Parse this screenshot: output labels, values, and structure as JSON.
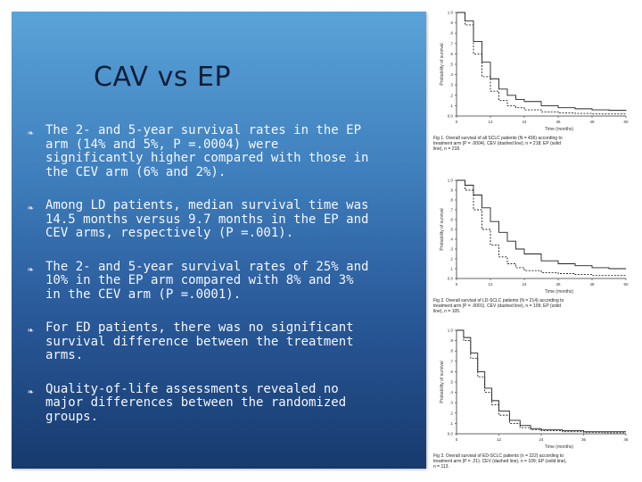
{
  "slide": {
    "title": "CAV vs EP",
    "bullets": [
      "The 2- and 5-year survival rates in the EP arm (14% and 5%, P =.0004) were significantly higher compared with those in the CEV arm (6% and 2%).",
      "Among LD patients, median survival time was 14.5 months versus 9.7 months in the EP and CEV arms, respectively (P =.001).",
      "The 2- and 5-year survival rates of 25% and 10% in the EP arm compared with 8% and 3% in the CEV arm (P =.0001).",
      "For ED patients, there was no significant survival difference between the treatment arms.",
      "Quality-of-life assessments revealed no major differences between the randomized groups."
    ],
    "bullet_icon": "swirl-bullet-icon"
  },
  "chart_data": [
    {
      "type": "line",
      "ylabel": "Probability of survival",
      "xlabel": "Time (months)",
      "x_ticks": [
        "0",
        "12",
        "24",
        "36",
        "48",
        "60"
      ],
      "y_ticks": [
        "0.0",
        ".1",
        ".2",
        ".3",
        ".4",
        ".5",
        ".6",
        ".7",
        ".8",
        ".9",
        "1.0"
      ],
      "ylim": [
        0,
        1
      ],
      "xlim": [
        0,
        60
      ],
      "caption": "Fig 1. Overall survival of all SCLC patients (N = 436) according to treatment arm (P = .0004). CEV (dashed line), n = 218; EP (solid line), n = 218.",
      "series": [
        {
          "style": "solid",
          "x": [
            0,
            3,
            6,
            9,
            12,
            15,
            18,
            21,
            24,
            30,
            36,
            42,
            48,
            54,
            60
          ],
          "y": [
            1.0,
            0.92,
            0.72,
            0.52,
            0.36,
            0.26,
            0.2,
            0.16,
            0.14,
            0.1,
            0.08,
            0.07,
            0.06,
            0.055,
            0.05
          ]
        },
        {
          "style": "dashed",
          "x": [
            0,
            3,
            6,
            9,
            12,
            15,
            18,
            21,
            24,
            30,
            36,
            42,
            48,
            54,
            60
          ],
          "y": [
            1.0,
            0.88,
            0.6,
            0.38,
            0.24,
            0.15,
            0.1,
            0.08,
            0.06,
            0.04,
            0.03,
            0.025,
            0.02,
            0.02,
            0.02
          ]
        }
      ]
    },
    {
      "type": "line",
      "ylabel": "Probability of survival",
      "xlabel": "Time (months)",
      "x_ticks": [
        "0",
        "12",
        "24",
        "36",
        "48",
        "60"
      ],
      "y_ticks": [
        "0.0",
        ".1",
        ".2",
        ".3",
        ".4",
        ".5",
        ".6",
        ".7",
        ".8",
        ".9",
        "1.0"
      ],
      "ylim": [
        0,
        1
      ],
      "xlim": [
        0,
        60
      ],
      "caption": "Fig 2. Overall survival of LD-SCLC patients (N = 214) according to treatment arm (P = .0001). CEV (dashed line), n = 109; EP (solid line), n = 105.",
      "series": [
        {
          "style": "solid",
          "x": [
            0,
            3,
            6,
            9,
            12,
            15,
            18,
            21,
            24,
            30,
            36,
            42,
            48,
            54,
            60
          ],
          "y": [
            1.0,
            0.95,
            0.85,
            0.72,
            0.58,
            0.47,
            0.38,
            0.3,
            0.25,
            0.18,
            0.15,
            0.13,
            0.11,
            0.1,
            0.1
          ]
        },
        {
          "style": "dashed",
          "x": [
            0,
            3,
            6,
            9,
            12,
            15,
            18,
            21,
            24,
            30,
            36,
            42,
            48,
            54,
            60
          ],
          "y": [
            1.0,
            0.9,
            0.7,
            0.5,
            0.34,
            0.22,
            0.15,
            0.11,
            0.08,
            0.06,
            0.05,
            0.04,
            0.03,
            0.03,
            0.03
          ]
        }
      ]
    },
    {
      "type": "line",
      "ylabel": "Probability of survival",
      "xlabel": "Time (months)",
      "x_ticks": [
        "0",
        "12",
        "24",
        "36",
        "48"
      ],
      "y_ticks": [
        "0.0",
        ".1",
        ".2",
        ".3",
        ".4",
        ".5",
        ".6",
        ".7",
        ".8",
        ".9",
        "1.0"
      ],
      "ylim": [
        0,
        1
      ],
      "xlim": [
        0,
        48
      ],
      "caption": "Fig 3. Overall survival of ED-SCLC patients (n = 222) according to treatment arm (P = .21). CEV (dashed line), n = 109; EP (solid line), n = 113.",
      "series": [
        {
          "style": "solid",
          "x": [
            0,
            2,
            4,
            6,
            8,
            10,
            12,
            15,
            18,
            21,
            24,
            30,
            36,
            42,
            48
          ],
          "y": [
            1.0,
            0.93,
            0.78,
            0.6,
            0.44,
            0.32,
            0.22,
            0.13,
            0.08,
            0.05,
            0.04,
            0.03,
            0.02,
            0.02,
            0.02
          ]
        },
        {
          "style": "dashed",
          "x": [
            0,
            2,
            4,
            6,
            8,
            10,
            12,
            15,
            18,
            21,
            24,
            30,
            36,
            42,
            48
          ],
          "y": [
            1.0,
            0.9,
            0.73,
            0.55,
            0.4,
            0.28,
            0.18,
            0.1,
            0.06,
            0.04,
            0.03,
            0.02,
            0.015,
            0.01,
            0.01
          ]
        }
      ]
    }
  ]
}
